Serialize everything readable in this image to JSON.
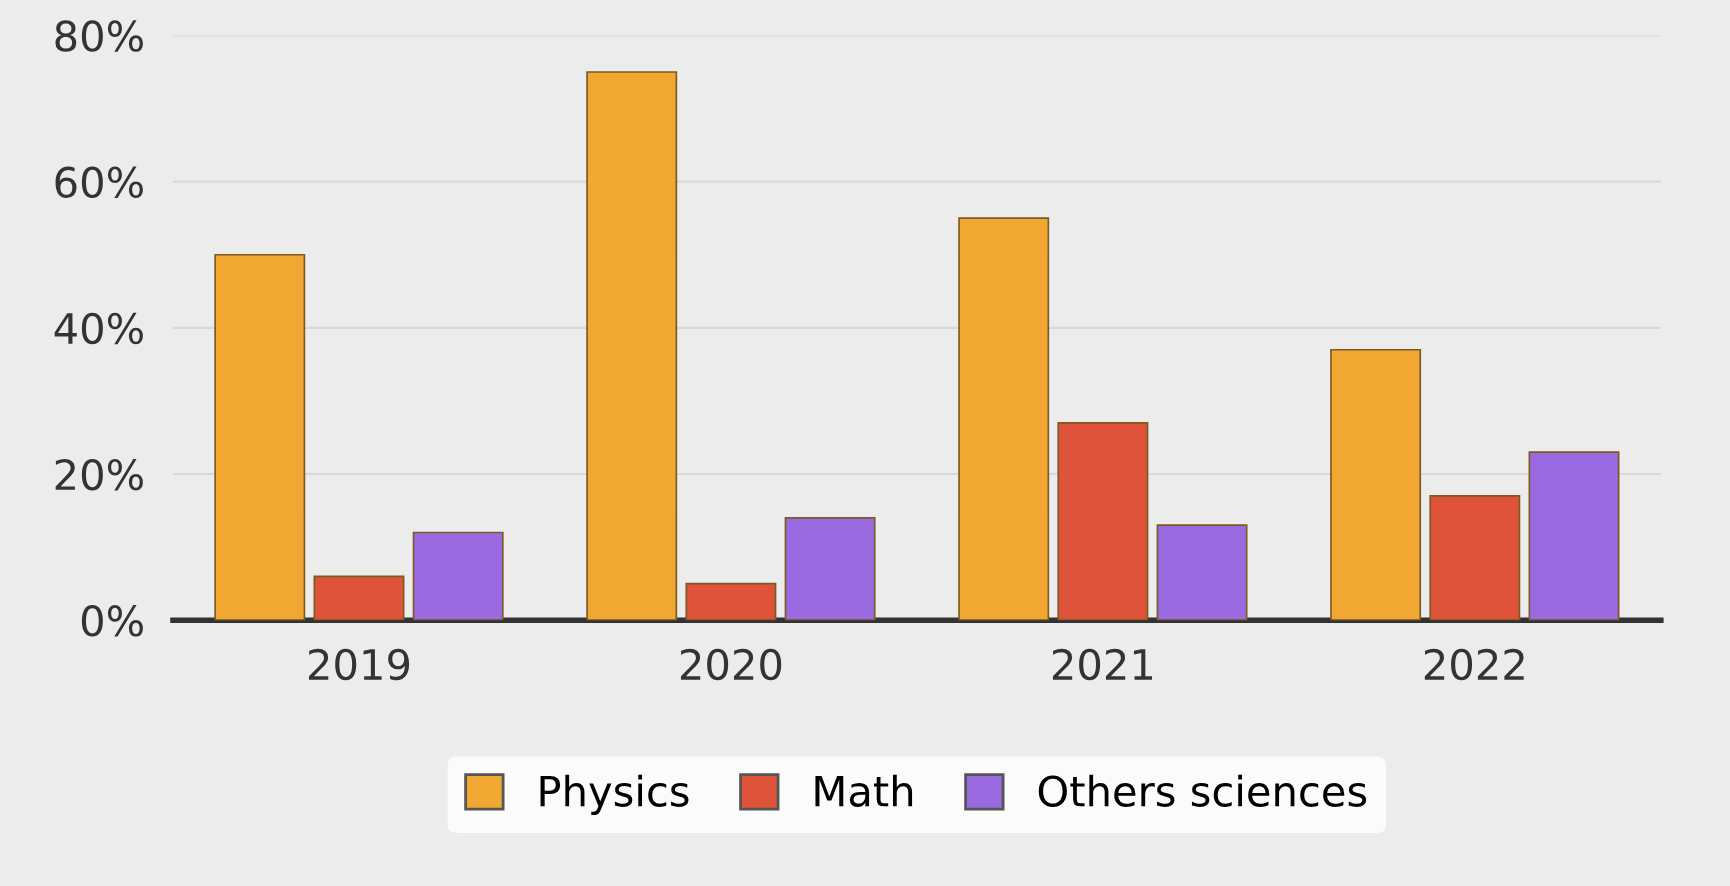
{
  "chart_data": {
    "type": "bar",
    "categories": [
      "2019",
      "2020",
      "2021",
      "2022"
    ],
    "series": [
      {
        "name": "Physics",
        "color": "#f0a832",
        "values": [
          50,
          75,
          55,
          37
        ]
      },
      {
        "name": "Math",
        "color": "#e0533b",
        "values": [
          6,
          5,
          27,
          17
        ]
      },
      {
        "name": "Others sciences",
        "color": "#9a6ae0",
        "values": [
          12,
          14,
          13,
          23
        ]
      }
    ],
    "ylim": [
      0,
      80
    ],
    "yticks": [
      {
        "value": 0,
        "label": "0%"
      },
      {
        "value": 20,
        "label": "20%"
      },
      {
        "value": 40,
        "label": "40%"
      },
      {
        "value": 60,
        "label": "60%"
      },
      {
        "value": 80,
        "label": "80%"
      }
    ],
    "grid": "y",
    "legend": "bottom"
  }
}
